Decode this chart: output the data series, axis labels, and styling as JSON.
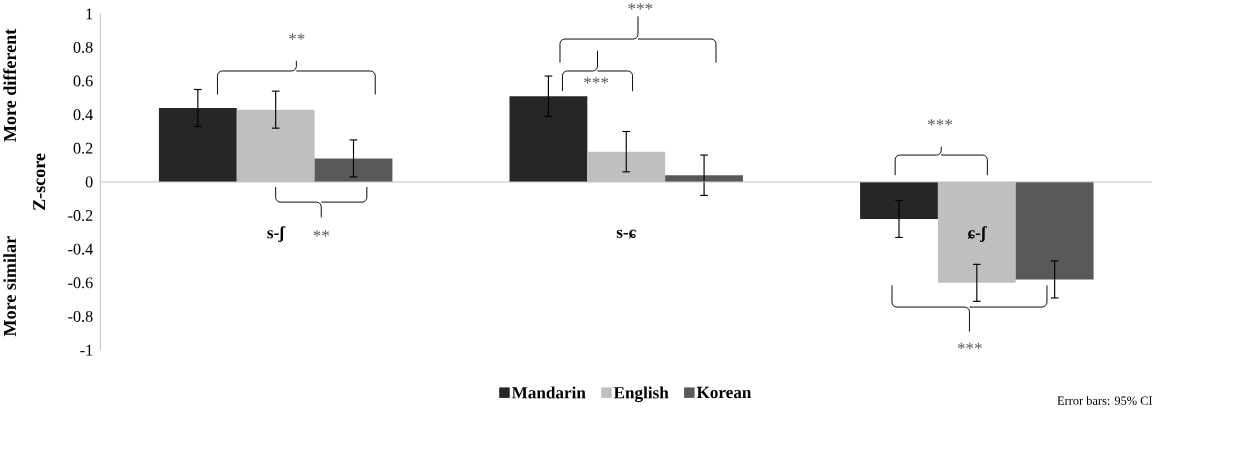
{
  "chart_data": {
    "type": "bar",
    "ylabel": "Z-score",
    "categories": [
      "s-ʃ",
      "s-ɕ",
      "ɕ-ʃ"
    ],
    "series": [
      {
        "name": "Mandarin",
        "color": "#262626",
        "values": [
          0.44,
          0.51,
          -0.22
        ],
        "errors": [
          0.11,
          0.12,
          0.11
        ]
      },
      {
        "name": "English",
        "color": "#bfbfbf",
        "values": [
          0.43,
          0.18,
          -0.6
        ],
        "errors": [
          0.11,
          0.12,
          0.11
        ]
      },
      {
        "name": "Korean",
        "color": "#595959",
        "values": [
          0.14,
          0.04,
          -0.58
        ],
        "errors": [
          0.11,
          0.12,
          0.11
        ]
      }
    ],
    "ylim": [
      -1,
      1
    ],
    "yticks": [
      -1,
      -0.8,
      -0.6,
      -0.4,
      -0.2,
      0,
      0.2,
      0.4,
      0.6,
      0.8,
      1
    ],
    "legend": "bottom",
    "annotations": [
      "**",
      "**",
      "***",
      "***",
      "***",
      "***",
      "More different",
      "More similar",
      "Error bars: 95% CI"
    ]
  }
}
